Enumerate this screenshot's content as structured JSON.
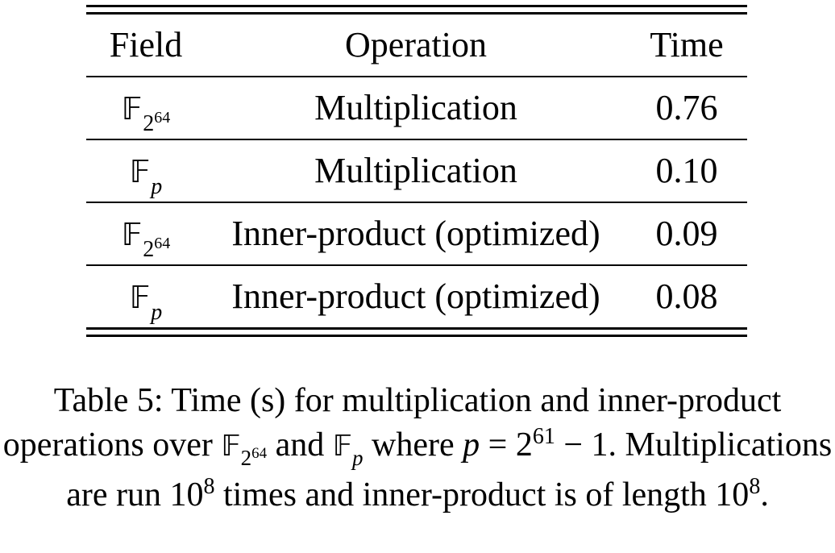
{
  "table": {
    "headers": [
      "Field",
      "Operation",
      "Time"
    ],
    "rows": [
      {
        "field_symbol": "𝔽",
        "field_sub": "2",
        "field_sub_exp": "64",
        "field_sub_italic": false,
        "operation": "Multiplication",
        "time": "0.76"
      },
      {
        "field_symbol": "𝔽",
        "field_sub": "p",
        "field_sub_exp": "",
        "field_sub_italic": true,
        "operation": "Multiplication",
        "time": "0.10"
      },
      {
        "field_symbol": "𝔽",
        "field_sub": "2",
        "field_sub_exp": "64",
        "field_sub_italic": false,
        "operation": "Inner-product (optimized)",
        "time": "0.09"
      },
      {
        "field_symbol": "𝔽",
        "field_sub": "p",
        "field_sub_exp": "",
        "field_sub_italic": true,
        "operation": "Inner-product (optimized)",
        "time": "0.08"
      }
    ]
  },
  "caption": {
    "part1": "Table 5: Time (s) for multiplication and inner-product operations over ",
    "f1_symbol": "𝔽",
    "f1_sub": "2",
    "f1_sub_exp": "64",
    "part2": " and ",
    "f2_symbol": "𝔽",
    "f2_sub": "p",
    "part3": " where ",
    "p_var": "p",
    "eq": " = 2",
    "eq_exp": "61",
    "eq_tail": " − 1. Multiplications are run 10",
    "mult_exp": "8",
    "part4": " times and inner-product is of length 10",
    "len_exp": "8",
    "part5": "."
  }
}
